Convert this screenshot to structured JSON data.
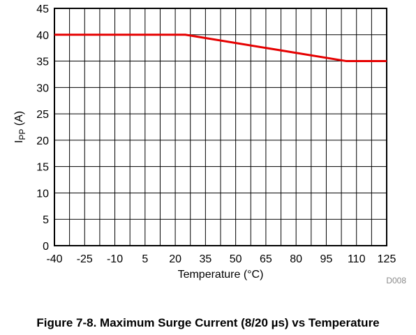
{
  "caption": "Figure 7-8. Maximum Surge Current (8/20 µs) vs Temperature",
  "chart_data": {
    "type": "line",
    "xlabel": "Temperature (°C)",
    "ylabel": {
      "main": "I",
      "sub": "PP",
      "unit": " (A)"
    },
    "xlim": [
      -40,
      125
    ],
    "ylim": [
      0,
      45
    ],
    "x_ticks": [
      -40,
      -25,
      -10,
      5,
      20,
      35,
      50,
      65,
      80,
      95,
      110,
      125
    ],
    "y_ticks": [
      0,
      5,
      10,
      15,
      20,
      25,
      30,
      35,
      40,
      45
    ],
    "x_grid": [
      -40,
      -32.5,
      -25,
      -17.5,
      -10,
      -2.5,
      5,
      12.5,
      20,
      27.5,
      35,
      42.5,
      50,
      57.5,
      65,
      72.5,
      80,
      87.5,
      95,
      102.5,
      110,
      117.5,
      125
    ],
    "grid": true,
    "series": [
      {
        "color": "#e60000",
        "x": [
          -40,
          25,
          105,
          125
        ],
        "y": [
          40,
          40,
          35,
          35
        ]
      }
    ],
    "code": "D008"
  }
}
